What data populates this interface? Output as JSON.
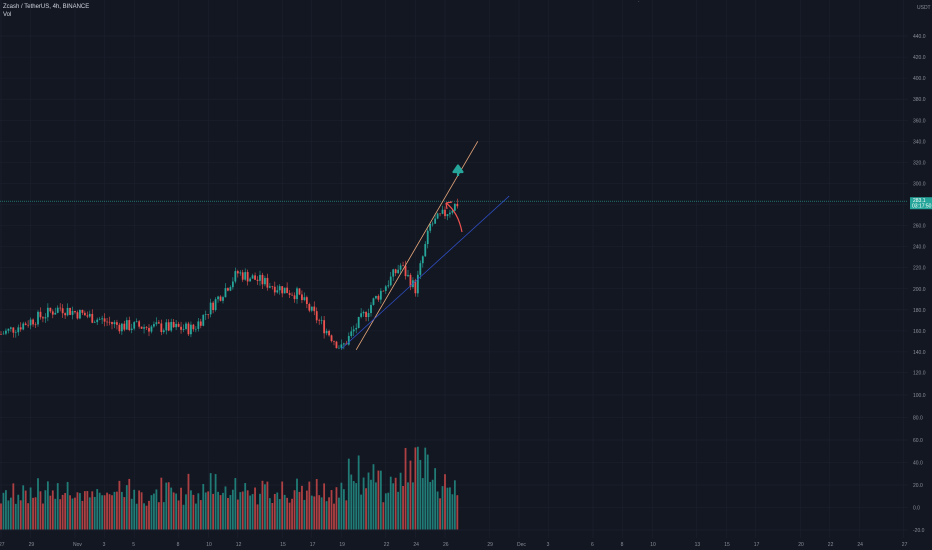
{
  "header": {
    "symbol": "Zcash / TetherUS, 4h, BINANCE",
    "volume_label": "Vol"
  },
  "colors": {
    "background": "#131722",
    "grid": "#1e2230",
    "up": "#26a69a",
    "down": "#ef5350",
    "trend_upper": "#e8a87c",
    "trend_lower": "#2e4dbf",
    "arrow_green": "#26a69a",
    "arrow_red": "#ef5350",
    "price_line": "#26a69a"
  },
  "chart_data": {
    "type": "candlestick",
    "currency": "USDT",
    "y_ticks": [
      "440.0",
      "420.0",
      "400.0",
      "380.0",
      "360.0",
      "340.0",
      "320.0",
      "300.0",
      "280.0",
      "260.0",
      "240.0",
      "220.0",
      "200.0",
      "180.0",
      "160.0",
      "140.0",
      "120.0",
      "100.0",
      "80.0",
      "60.0",
      "40.0",
      "20.0",
      "0.0",
      "-20.0"
    ],
    "price_ylim": [
      120,
      450
    ],
    "volume_ylim": [
      -20,
      100
    ],
    "x_ticks": [
      "27",
      "29",
      "Nov",
      "3",
      "5",
      "8",
      "10",
      "12",
      "15",
      "17",
      "19",
      "22",
      "24",
      "26",
      "29",
      "Dec",
      "3",
      "6",
      "8",
      "10",
      "13",
      "15",
      "17",
      "20",
      "22",
      "24",
      "27"
    ],
    "current_price": "283.1",
    "current_countdown": "03:17:50",
    "trend_upper": {
      "from": [
        "Nov 19",
        142
      ],
      "to": [
        "Nov 26",
        340
      ]
    },
    "trend_lower": {
      "from": [
        "Nov 18",
        143
      ],
      "to": [
        "Nov 29",
        288
      ]
    },
    "key_closes": [
      {
        "date": "Oct 27",
        "close": 157
      },
      {
        "date": "Oct 31",
        "close": 182
      },
      {
        "date": "Nov 3",
        "close": 165
      },
      {
        "date": "Nov 8",
        "close": 162
      },
      {
        "date": "Nov 11",
        "close": 215
      },
      {
        "date": "Nov 15",
        "close": 195
      },
      {
        "date": "Nov 18",
        "close": 143
      },
      {
        "date": "Nov 20",
        "close": 185
      },
      {
        "date": "Nov 22",
        "close": 222
      },
      {
        "date": "Nov 23",
        "close": 200
      },
      {
        "date": "Nov 24",
        "close": 260
      },
      {
        "date": "Nov 26",
        "close": 283
      }
    ]
  }
}
